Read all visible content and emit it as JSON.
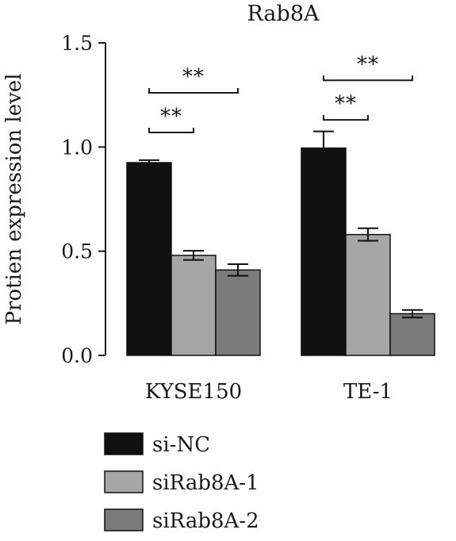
{
  "chart_data": {
    "type": "bar",
    "title": "Rab8A",
    "xlabel": "",
    "ylabel": "Protien expression level",
    "ylim": [
      0,
      1.5
    ],
    "yticks": [
      "0.0",
      "0.5",
      "1.0",
      "1.5"
    ],
    "categories": [
      "KYSE150",
      "TE-1"
    ],
    "series": [
      {
        "name": "si-NC",
        "color": "#111111",
        "values": [
          0.925,
          0.995
        ],
        "errors": [
          0.012,
          0.08
        ]
      },
      {
        "name": "siRab8A-1",
        "color": "#a6a6a6",
        "values": [
          0.48,
          0.58
        ],
        "errors": [
          0.022,
          0.03
        ]
      },
      {
        "name": "siRab8A-2",
        "color": "#7b7b7b",
        "values": [
          0.41,
          0.2
        ],
        "errors": [
          0.028,
          0.018
        ]
      }
    ],
    "grid": false,
    "legend": "bottom",
    "annotations": [
      {
        "text": "**",
        "category": 0,
        "from": 0,
        "to": 1,
        "y": 1.07
      },
      {
        "text": "**",
        "category": 0,
        "from": 0,
        "to": 2,
        "y": 1.26
      },
      {
        "text": "**",
        "category": 1,
        "from": 0,
        "to": 1,
        "y": 1.13
      },
      {
        "text": "**",
        "category": 1,
        "from": 0,
        "to": 2,
        "y": 1.32
      }
    ]
  }
}
